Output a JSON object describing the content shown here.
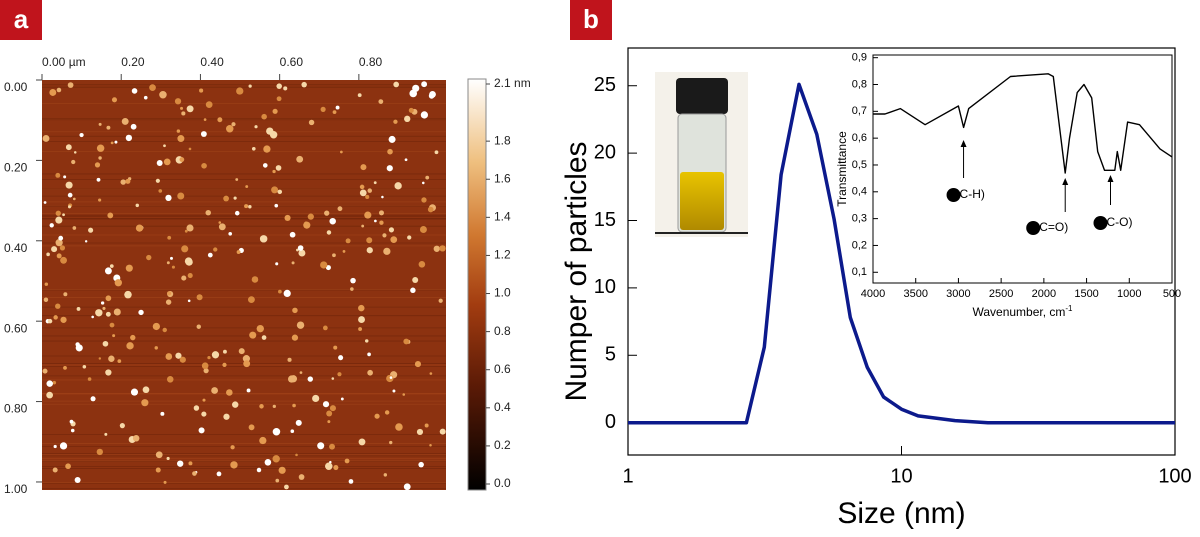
{
  "chart_data": [
    {
      "type": "image",
      "label": "a",
      "xlim": [
        0,
        1.02
      ],
      "xticks": [
        {
          "value": 0,
          "label": "0.00 µm"
        },
        {
          "value": 0.2,
          "label": "0.20"
        },
        {
          "value": 0.4,
          "label": "0.40"
        },
        {
          "value": 0.6,
          "label": "0.60"
        },
        {
          "value": 0.8,
          "label": "0.80"
        }
      ],
      "ylim": [
        0,
        1.02
      ],
      "yticks": [
        {
          "value": 0,
          "label": "0.00"
        },
        {
          "value": 0.2,
          "label": "0.20"
        },
        {
          "value": 0.4,
          "label": "0.40"
        },
        {
          "value": 0.6,
          "label": "0.60"
        },
        {
          "value": 0.8,
          "label": "0.80"
        },
        {
          "value": 1,
          "label": "1.00"
        }
      ],
      "colorbar": {
        "clim": [
          0,
          2.1
        ],
        "ticks": [
          {
            "value": 2.1,
            "label": "2.1 nm"
          },
          {
            "value": 1.8,
            "label": "1.8"
          },
          {
            "value": 1.6,
            "label": "1.6"
          },
          {
            "value": 1.4,
            "label": "1.4"
          },
          {
            "value": 1.2,
            "label": "1.2"
          },
          {
            "value": 1,
            "label": "1.0"
          },
          {
            "value": 0.8,
            "label": "0.8"
          },
          {
            "value": 0.6,
            "label": "0.6"
          },
          {
            "value": 0.4,
            "label": "0.4"
          },
          {
            "value": 0.2,
            "label": "0.2"
          },
          {
            "value": 0,
            "label": "0.0"
          }
        ]
      }
    },
    {
      "type": "line",
      "label": "b",
      "xlabel": "Size (nm)",
      "ylabel": "Numper of particles",
      "xscale": "log",
      "xlim": [
        1,
        100
      ],
      "xticks": [
        1,
        10,
        100
      ],
      "ylim": [
        -2.4,
        27.8
      ],
      "yticks": [
        0,
        5,
        10,
        15,
        20,
        25
      ],
      "color": "#0c1a8c",
      "x": [
        1,
        2.71,
        3.15,
        3.63,
        4.22,
        4.9,
        5.67,
        6.5,
        7.5,
        8.6,
        10,
        11.5,
        15.7,
        20.7,
        100
      ],
      "values": [
        0,
        0,
        5.6,
        18.4,
        25.1,
        21.4,
        15.1,
        7.8,
        4.1,
        1.9,
        1.0,
        0.5,
        0.15,
        0,
        0
      ]
    },
    {
      "type": "line",
      "inset": true,
      "xlabel": "Wavenumber, cm",
      "xlabel_superscript": "-1",
      "ylabel": "Transmittance",
      "xlim": [
        4000,
        500
      ],
      "xticks": [
        4000,
        3500,
        3000,
        2500,
        2000,
        1500,
        1000,
        500
      ],
      "ylim": [
        0.06,
        0.91
      ],
      "yticks": [
        {
          "value": 0.1,
          "label": "0,1"
        },
        {
          "value": 0.2,
          "label": "0,2"
        },
        {
          "value": 0.3,
          "label": "0,3"
        },
        {
          "value": 0.4,
          "label": "0,4"
        },
        {
          "value": 0.5,
          "label": "0,5"
        },
        {
          "value": 0.6,
          "label": "0,6"
        },
        {
          "value": 0.7,
          "label": "0,7"
        },
        {
          "value": 0.8,
          "label": "0,8"
        },
        {
          "value": 0.9,
          "label": "0,9"
        }
      ],
      "color": "#000000",
      "x": [
        4000,
        3860,
        3680,
        3390,
        3000,
        2940,
        2880,
        2390,
        1950,
        1890,
        1800,
        1750,
        1700,
        1610,
        1530,
        1440,
        1370,
        1290,
        1170,
        1140,
        1100,
        1020,
        880,
        640,
        500
      ],
      "values": [
        0.69,
        0.69,
        0.71,
        0.65,
        0.72,
        0.64,
        0.71,
        0.83,
        0.84,
        0.83,
        0.6,
        0.47,
        0.6,
        0.77,
        0.8,
        0.75,
        0.55,
        0.48,
        0.48,
        0.55,
        0.48,
        0.66,
        0.65,
        0.56,
        0.53
      ],
      "annotations": [
        {
          "text": "C-H)",
          "x": 2940
        },
        {
          "text": "C=O)",
          "x": 1750
        },
        {
          "text": "C-O)",
          "x": 1220
        }
      ]
    }
  ]
}
